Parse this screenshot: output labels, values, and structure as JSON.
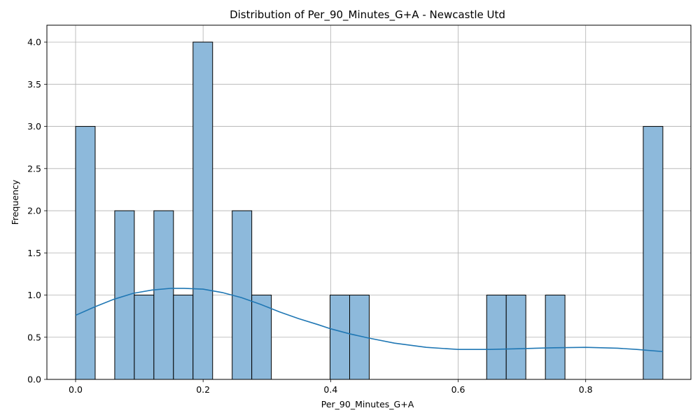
{
  "chart_data": {
    "type": "bar",
    "title": "Distribution of Per_90_Minutes_G+A - Newcastle Utd",
    "xlabel": "Per_90_Minutes_G+A",
    "ylabel": "Frequency",
    "xlim": [
      -0.045,
      0.965
    ],
    "ylim": [
      0,
      4.2
    ],
    "xticks": [
      0.0,
      0.2,
      0.4,
      0.6,
      0.8
    ],
    "xtick_labels": [
      "0.0",
      "0.2",
      "0.4",
      "0.6",
      "0.8"
    ],
    "yticks": [
      0.0,
      0.5,
      1.0,
      1.5,
      2.0,
      2.5,
      3.0,
      3.5,
      4.0
    ],
    "ytick_labels": [
      "0.0",
      "0.5",
      "1.0",
      "1.5",
      "2.0",
      "2.5",
      "3.0",
      "3.5",
      "4.0"
    ],
    "grid": true,
    "bar_color": "#8db9db",
    "bar_edge_color": "#000000",
    "kde_color": "#1f77b4",
    "bins": [
      {
        "x0": 0.0,
        "x1": 0.0307,
        "count": 3
      },
      {
        "x0": 0.0307,
        "x1": 0.0614,
        "count": 0
      },
      {
        "x0": 0.0614,
        "x1": 0.0921,
        "count": 2
      },
      {
        "x0": 0.0921,
        "x1": 0.1228,
        "count": 1
      },
      {
        "x0": 0.1228,
        "x1": 0.1535,
        "count": 2
      },
      {
        "x0": 0.1535,
        "x1": 0.1842,
        "count": 1
      },
      {
        "x0": 0.1842,
        "x1": 0.2149,
        "count": 4
      },
      {
        "x0": 0.2149,
        "x1": 0.2456,
        "count": 0
      },
      {
        "x0": 0.2456,
        "x1": 0.2763,
        "count": 2
      },
      {
        "x0": 0.2763,
        "x1": 0.307,
        "count": 1
      },
      {
        "x0": 0.307,
        "x1": 0.3377,
        "count": 0
      },
      {
        "x0": 0.3377,
        "x1": 0.3684,
        "count": 0
      },
      {
        "x0": 0.3684,
        "x1": 0.3991,
        "count": 0
      },
      {
        "x0": 0.3991,
        "x1": 0.4298,
        "count": 1
      },
      {
        "x0": 0.4298,
        "x1": 0.4605,
        "count": 1
      },
      {
        "x0": 0.4605,
        "x1": 0.4912,
        "count": 0
      },
      {
        "x0": 0.4912,
        "x1": 0.5219,
        "count": 0
      },
      {
        "x0": 0.5219,
        "x1": 0.5526,
        "count": 0
      },
      {
        "x0": 0.5526,
        "x1": 0.5833,
        "count": 0
      },
      {
        "x0": 0.5833,
        "x1": 0.614,
        "count": 0
      },
      {
        "x0": 0.614,
        "x1": 0.6447,
        "count": 0
      },
      {
        "x0": 0.6447,
        "x1": 0.6754,
        "count": 1
      },
      {
        "x0": 0.6754,
        "x1": 0.7061,
        "count": 1
      },
      {
        "x0": 0.7061,
        "x1": 0.7368,
        "count": 0
      },
      {
        "x0": 0.7368,
        "x1": 0.7675,
        "count": 1
      },
      {
        "x0": 0.7675,
        "x1": 0.7982,
        "count": 0
      },
      {
        "x0": 0.7982,
        "x1": 0.8289,
        "count": 0
      },
      {
        "x0": 0.8289,
        "x1": 0.8596,
        "count": 0
      },
      {
        "x0": 0.8596,
        "x1": 0.8903,
        "count": 0
      },
      {
        "x0": 0.8903,
        "x1": 0.921,
        "count": 3
      }
    ],
    "kde": {
      "x": [
        0.0,
        0.03,
        0.06,
        0.09,
        0.12,
        0.15,
        0.17,
        0.2,
        0.23,
        0.26,
        0.29,
        0.32,
        0.35,
        0.38,
        0.4,
        0.43,
        0.46,
        0.5,
        0.55,
        0.6,
        0.65,
        0.7,
        0.75,
        0.8,
        0.85,
        0.88,
        0.921
      ],
      "y": [
        0.76,
        0.86,
        0.95,
        1.02,
        1.06,
        1.08,
        1.08,
        1.07,
        1.03,
        0.97,
        0.89,
        0.8,
        0.72,
        0.65,
        0.6,
        0.54,
        0.49,
        0.43,
        0.38,
        0.355,
        0.355,
        0.365,
        0.375,
        0.38,
        0.37,
        0.355,
        0.33
      ]
    }
  }
}
